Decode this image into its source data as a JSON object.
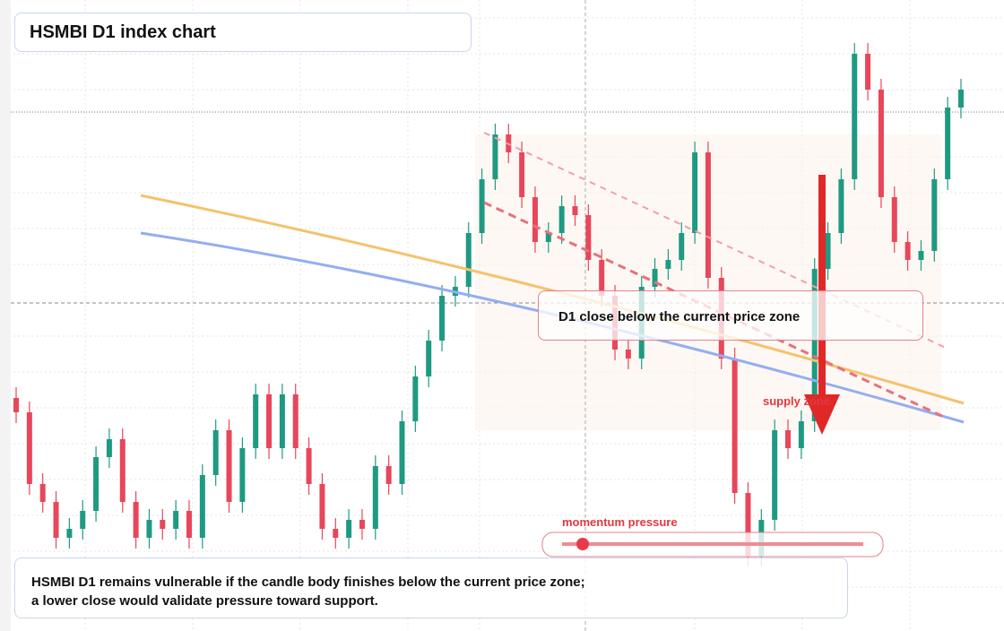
{
  "chart_data": {
    "type": "candlestick",
    "title": "HSMBI D1 index chart",
    "callout": "D1 close below the current price zone",
    "zone_label": "supply zone",
    "indicator_label": "momentum pressure",
    "summary": "HSMBI D1 remains vulnerable if the candle body finishes below the current price zone; a lower close would validate pressure toward support.",
    "up_color": "#1f9a82",
    "down_color": "#e8465a",
    "ylim": [
      0,
      704
    ],
    "open": [
      260,
      244,
      164,
      144,
      104,
      114,
      134,
      194,
      214,
      144,
      104,
      124,
      114,
      134,
      104,
      174,
      224,
      144,
      204,
      264,
      204,
      264,
      204,
      164,
      114,
      104,
      124,
      114,
      184,
      164,
      234,
      284,
      324,
      374,
      384,
      444,
      504,
      554,
      534,
      484,
      434,
      444,
      474,
      464,
      414,
      374,
      314,
      304,
      384,
      404,
      414,
      444,
      534,
      394,
      304,
      154,
      84,
      124,
      224,
      204,
      234,
      404,
      444,
      504,
      644,
      604,
      484,
      434,
      414,
      424,
      504,
      584
    ],
    "high": [
      272,
      256,
      176,
      156,
      126,
      146,
      206,
      226,
      226,
      156,
      136,
      136,
      146,
      146,
      186,
      236,
      236,
      216,
      276,
      276,
      276,
      276,
      216,
      176,
      126,
      136,
      136,
      196,
      196,
      246,
      296,
      336,
      386,
      396,
      456,
      516,
      566,
      566,
      546,
      496,
      456,
      486,
      486,
      476,
      426,
      386,
      326,
      396,
      416,
      426,
      456,
      546,
      546,
      406,
      316,
      166,
      136,
      236,
      236,
      246,
      416,
      456,
      516,
      656,
      656,
      616,
      496,
      446,
      436,
      516,
      596,
      616
    ],
    "low": [
      232,
      152,
      132,
      92,
      92,
      102,
      122,
      182,
      132,
      92,
      92,
      102,
      102,
      92,
      92,
      162,
      132,
      132,
      192,
      192,
      192,
      192,
      152,
      102,
      92,
      92,
      102,
      102,
      152,
      152,
      222,
      272,
      312,
      362,
      372,
      432,
      492,
      522,
      472,
      422,
      422,
      432,
      452,
      402,
      362,
      302,
      292,
      292,
      372,
      392,
      402,
      432,
      382,
      292,
      142,
      72,
      72,
      112,
      192,
      192,
      222,
      392,
      432,
      492,
      592,
      472,
      422,
      402,
      402,
      412,
      492,
      572
    ],
    "close": [
      244,
      164,
      144,
      104,
      114,
      134,
      194,
      214,
      144,
      104,
      124,
      114,
      134,
      104,
      174,
      224,
      144,
      204,
      264,
      204,
      264,
      204,
      164,
      114,
      104,
      124,
      114,
      184,
      164,
      234,
      284,
      324,
      374,
      384,
      444,
      504,
      554,
      534,
      484,
      434,
      444,
      474,
      464,
      414,
      374,
      314,
      304,
      384,
      404,
      414,
      444,
      534,
      394,
      304,
      154,
      84,
      124,
      224,
      204,
      234,
      404,
      444,
      504,
      644,
      604,
      484,
      434,
      414,
      424,
      504,
      584,
      604
    ]
  }
}
